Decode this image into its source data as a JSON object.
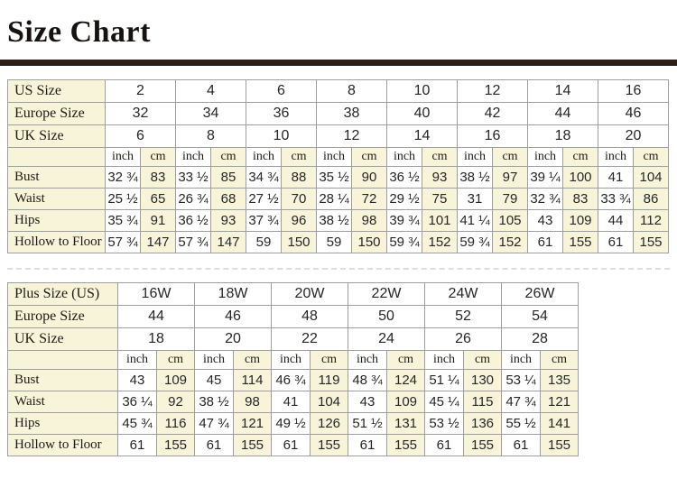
{
  "page": {
    "title": "Size Chart"
  },
  "colors": {
    "accent_bar": "#2b1e18",
    "cell_cream": "#f8f4da",
    "cell_white": "#ffffff",
    "grid_border": "#9e9e9e"
  },
  "unit_header": {
    "inch": "inch",
    "cm": "cm"
  },
  "tables": [
    {
      "name": "standard-sizes",
      "size_rows": [
        {
          "label": "US Size",
          "values": [
            "2",
            "4",
            "6",
            "8",
            "10",
            "12",
            "14",
            "16"
          ]
        },
        {
          "label": "Europe Size",
          "values": [
            "32",
            "34",
            "36",
            "38",
            "40",
            "42",
            "44",
            "46"
          ]
        },
        {
          "label": "UK Size",
          "values": [
            "6",
            "8",
            "10",
            "12",
            "14",
            "16",
            "18",
            "20"
          ]
        }
      ],
      "measure_rows": [
        {
          "label": "Bust",
          "values": [
            [
              "32 ¾",
              "83"
            ],
            [
              "33 ½",
              "85"
            ],
            [
              "34 ¾",
              "88"
            ],
            [
              "35 ½",
              "90"
            ],
            [
              "36 ½",
              "93"
            ],
            [
              "38 ½",
              "97"
            ],
            [
              "39 ¼",
              "100"
            ],
            [
              "41",
              "104"
            ]
          ]
        },
        {
          "label": "Waist",
          "values": [
            [
              "25 ½",
              "65"
            ],
            [
              "26 ¾",
              "68"
            ],
            [
              "27 ½",
              "70"
            ],
            [
              "28 ¼",
              "72"
            ],
            [
              "29 ½",
              "75"
            ],
            [
              "31",
              "79"
            ],
            [
              "32 ¾",
              "83"
            ],
            [
              "33 ¾",
              "86"
            ]
          ]
        },
        {
          "label": "Hips",
          "values": [
            [
              "35 ¾",
              "91"
            ],
            [
              "36 ½",
              "93"
            ],
            [
              "37 ¾",
              "96"
            ],
            [
              "38 ½",
              "98"
            ],
            [
              "39 ¾",
              "101"
            ],
            [
              "41 ¼",
              "105"
            ],
            [
              "43",
              "109"
            ],
            [
              "44",
              "112"
            ]
          ]
        },
        {
          "label": "Hollow to Floor",
          "values": [
            [
              "57 ¾",
              "147"
            ],
            [
              "57 ¾",
              "147"
            ],
            [
              "59",
              "150"
            ],
            [
              "59",
              "150"
            ],
            [
              "59 ¾",
              "152"
            ],
            [
              "59 ¾",
              "152"
            ],
            [
              "61",
              "155"
            ],
            [
              "61",
              "155"
            ]
          ]
        }
      ]
    },
    {
      "name": "plus-sizes",
      "size_rows": [
        {
          "label": "Plus Size (US)",
          "values": [
            "16W",
            "18W",
            "20W",
            "22W",
            "24W",
            "26W"
          ]
        },
        {
          "label": "Europe Size",
          "values": [
            "44",
            "46",
            "48",
            "50",
            "52",
            "54"
          ]
        },
        {
          "label": "UK Size",
          "values": [
            "18",
            "20",
            "22",
            "24",
            "26",
            "28"
          ]
        }
      ],
      "measure_rows": [
        {
          "label": "Bust",
          "values": [
            [
              "43",
              "109"
            ],
            [
              "45",
              "114"
            ],
            [
              "46 ¾",
              "119"
            ],
            [
              "48 ¾",
              "124"
            ],
            [
              "51 ¼",
              "130"
            ],
            [
              "53 ¼",
              "135"
            ]
          ]
        },
        {
          "label": "Waist",
          "values": [
            [
              "36 ¼",
              "92"
            ],
            [
              "38 ½",
              "98"
            ],
            [
              "41",
              "104"
            ],
            [
              "43",
              "109"
            ],
            [
              "45 ¼",
              "115"
            ],
            [
              "47 ¾",
              "121"
            ]
          ]
        },
        {
          "label": "Hips",
          "values": [
            [
              "45 ¾",
              "116"
            ],
            [
              "47 ¾",
              "121"
            ],
            [
              "49 ½",
              "126"
            ],
            [
              "51 ½",
              "131"
            ],
            [
              "53 ½",
              "136"
            ],
            [
              "55 ½",
              "141"
            ]
          ]
        },
        {
          "label": "Hollow to Floor",
          "values": [
            [
              "61",
              "155"
            ],
            [
              "61",
              "155"
            ],
            [
              "61",
              "155"
            ],
            [
              "61",
              "155"
            ],
            [
              "61",
              "155"
            ],
            [
              "61",
              "155"
            ]
          ]
        }
      ]
    }
  ]
}
